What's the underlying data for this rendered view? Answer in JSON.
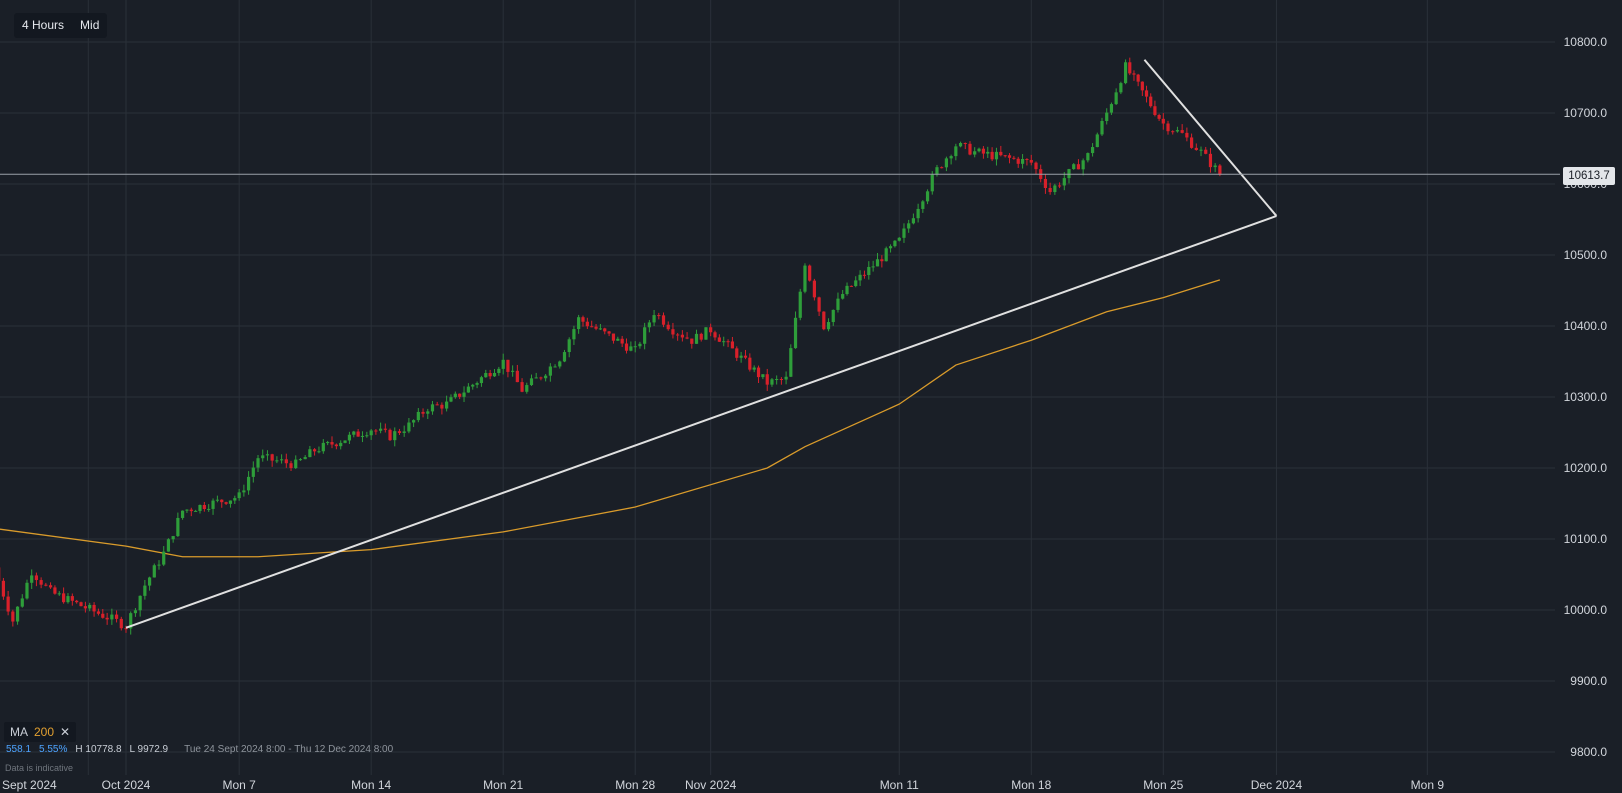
{
  "toolbar": {
    "timeframe": "4 Hours",
    "price_mode": "Mid"
  },
  "current_price": "10613.7",
  "indicator": {
    "name": "MA",
    "period": "200",
    "close_icon": "close-icon"
  },
  "stats": {
    "change": "558.1",
    "change_pct": "5.55%",
    "high": "H 10778.8",
    "low": "L 9972.9",
    "range": "Tue 24 Sept 2024 8:00 - Thu 12 Dec 2024 8:00"
  },
  "disclaimer": "Data is indicative",
  "colors": {
    "background": "#1a1f27",
    "up": "#2e9e3a",
    "down": "#d8202a",
    "ma": "#d99b2b",
    "trendline": "#e0e0e0"
  },
  "chart_data": {
    "type": "candlestick",
    "interval": "4 Hours",
    "y_axis": {
      "ticks": [
        10800,
        10700,
        10600,
        10500,
        10400,
        10300,
        10200,
        10100,
        10000,
        9900,
        9800
      ],
      "tick_labels": [
        "10800.0",
        "10700.0",
        "10600.0",
        "10500.0",
        "10400.0",
        "10300.0",
        "10200.0",
        "10100.0",
        "10000.0",
        "9900.0",
        "9800.0"
      ],
      "range": [
        9800,
        10800
      ]
    },
    "x_axis": {
      "labels": [
        "Sept 2024",
        "Oct 2024",
        "Mon 7",
        "Mon 14",
        "Mon 21",
        "Mon 28",
        "Nov 2024",
        "Mon 11",
        "Mon 18",
        "Mon 25",
        "Dec 2024",
        "Mon 9"
      ],
      "dates": [
        "2024-09-29",
        "2024-10-01",
        "2024-10-07",
        "2024-10-14",
        "2024-10-21",
        "2024-10-28",
        "2024-11-01",
        "2024-11-11",
        "2024-11-18",
        "2024-11-25",
        "2024-12-01",
        "2024-12-09"
      ]
    },
    "price_series": [
      [
        "2024-09-24",
        10060
      ],
      [
        "2024-09-25",
        9985
      ],
      [
        "2024-09-26",
        10055
      ],
      [
        "2024-09-27",
        10025
      ],
      [
        "2024-09-30",
        9990
      ],
      [
        "2024-10-01",
        9978
      ],
      [
        "2024-10-02",
        10035
      ],
      [
        "2024-10-03",
        10080
      ],
      [
        "2024-10-04",
        10140
      ],
      [
        "2024-10-07",
        10160
      ],
      [
        "2024-10-08",
        10215
      ],
      [
        "2024-10-09",
        10210
      ],
      [
        "2024-10-10",
        10205
      ],
      [
        "2024-10-11",
        10225
      ],
      [
        "2024-10-14",
        10255
      ],
      [
        "2024-10-15",
        10245
      ],
      [
        "2024-10-16",
        10260
      ],
      [
        "2024-10-17",
        10285
      ],
      [
        "2024-10-18",
        10290
      ],
      [
        "2024-10-21",
        10350
      ],
      [
        "2024-10-22",
        10310
      ],
      [
        "2024-10-23",
        10330
      ],
      [
        "2024-10-24",
        10355
      ],
      [
        "2024-10-25",
        10410
      ],
      [
        "2024-10-28",
        10365
      ],
      [
        "2024-10-29",
        10420
      ],
      [
        "2024-10-30",
        10395
      ],
      [
        "2024-10-31",
        10380
      ],
      [
        "2024-11-01",
        10395
      ],
      [
        "2024-11-04",
        10320
      ],
      [
        "2024-11-05",
        10325
      ],
      [
        "2024-11-06",
        10490
      ],
      [
        "2024-11-07",
        10400
      ],
      [
        "2024-11-08",
        10445
      ],
      [
        "2024-11-11",
        10520
      ],
      [
        "2024-11-12",
        10570
      ],
      [
        "2024-11-13",
        10620
      ],
      [
        "2024-11-14",
        10655
      ],
      [
        "2024-11-15",
        10645
      ],
      [
        "2024-11-18",
        10630
      ],
      [
        "2024-11-19",
        10590
      ],
      [
        "2024-11-20",
        10615
      ],
      [
        "2024-11-21",
        10640
      ],
      [
        "2024-11-22",
        10700
      ],
      [
        "2024-11-23",
        10765
      ],
      [
        "2024-11-25",
        10685
      ],
      [
        "2024-11-26",
        10670
      ],
      [
        "2024-11-27",
        10645
      ],
      [
        "2024-11-28",
        10613.7
      ]
    ],
    "high": 10778.8,
    "low": 9972.9,
    "moving_average": {
      "name": "MA",
      "period": 200,
      "points": [
        [
          "2024-09-24",
          10115
        ],
        [
          "2024-10-01",
          10090
        ],
        [
          "2024-10-04",
          10075
        ],
        [
          "2024-10-08",
          10075
        ],
        [
          "2024-10-14",
          10085
        ],
        [
          "2024-10-21",
          10110
        ],
        [
          "2024-10-28",
          10145
        ],
        [
          "2024-11-04",
          10200
        ],
        [
          "2024-11-06",
          10230
        ],
        [
          "2024-11-11",
          10290
        ],
        [
          "2024-11-14",
          10345
        ],
        [
          "2024-11-18",
          10380
        ],
        [
          "2024-11-22",
          10420
        ],
        [
          "2024-11-25",
          10440
        ],
        [
          "2024-11-28",
          10465
        ]
      ]
    },
    "trendlines": [
      {
        "from": [
          "2024-10-01",
          9975
        ],
        "to": [
          "2024-12-01",
          10555
        ]
      },
      {
        "from": [
          "2024-11-24",
          10775
        ],
        "to": [
          "2024-12-01",
          10555
        ]
      }
    ],
    "horizontal_line": 10613.7,
    "grid": true
  }
}
